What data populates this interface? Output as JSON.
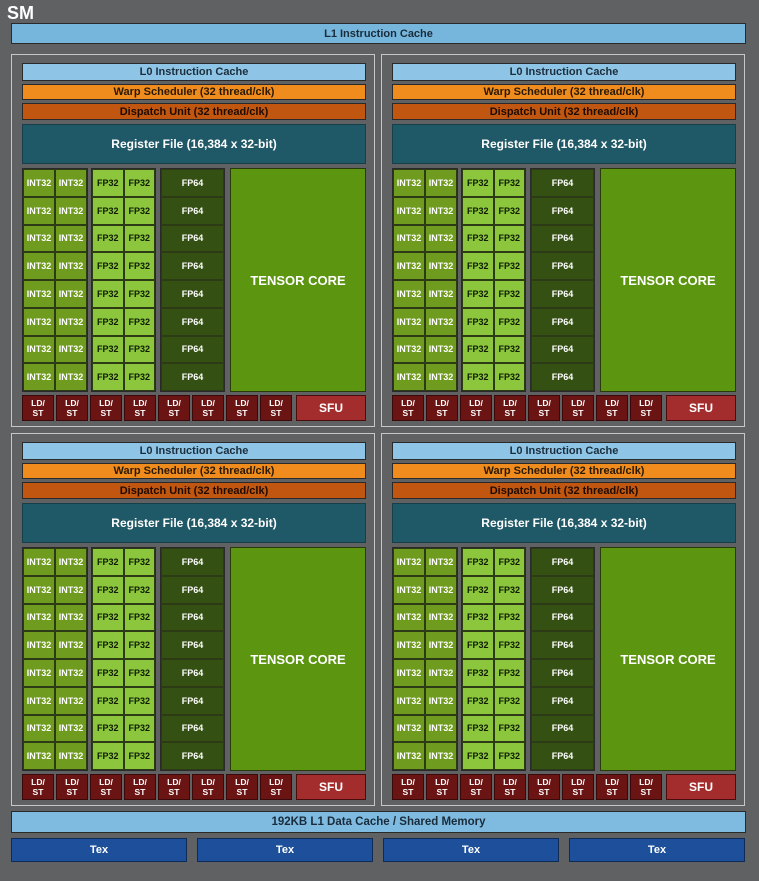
{
  "sm_title": "SM",
  "l1_instruction_cache": "L1 Instruction Cache",
  "partition": {
    "l0_cache": "L0 Instruction Cache",
    "warp_scheduler": "Warp Scheduler (32 thread/clk)",
    "dispatch_unit": "Dispatch Unit (32 thread/clk)",
    "register_file": "Register File (16,384 x 32-bit)",
    "int32_label": "INT32",
    "fp32_label": "FP32",
    "fp64_label": "FP64",
    "tensor_core": "TENSOR CORE",
    "ldst_label": "LD/\nST",
    "sfu_label": "SFU",
    "unit_rows": 8,
    "ldst_count": 8
  },
  "l1_data_cache": "192KB L1 Data Cache / Shared Memory",
  "tex_units": [
    "Tex",
    "Tex",
    "Tex",
    "Tex"
  ],
  "colors": {
    "background": "#5f6163",
    "cache": "#8ec5e6",
    "warp_scheduler": "#f08b1d",
    "dispatch_unit": "#c0560f",
    "register_file": "#1f5866",
    "int32": "#6f9b1e",
    "fp32": "#8bc63c",
    "fp64": "#355013",
    "tensor_core": "#5c9610",
    "ldst": "#6b1414",
    "sfu": "#a32d2d",
    "tex": "#1d4f9a"
  }
}
